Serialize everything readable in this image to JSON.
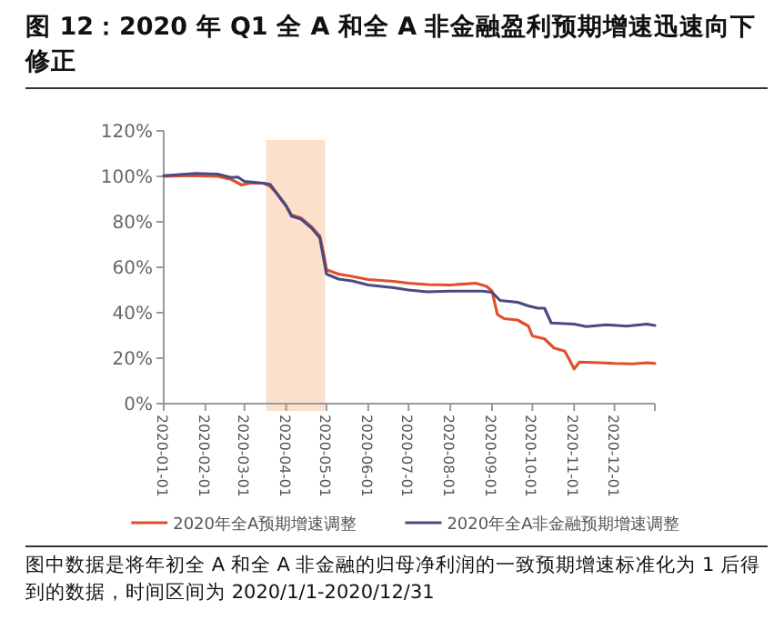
{
  "chart_data": {
    "type": "line",
    "title": "图 12：2020 年 Q1 全 A 和全 A 非金融盈利预期增速迅速向下修正",
    "annotations": [
      "图中数据是将年初全 A 和全 A 非金融的归母净利润的一致预期增速标准化为 1 后得到的数据，时间区间为 2020/1/1-2020/12/31"
    ],
    "series": [
      {
        "name": "2020年全A预期增速调整",
        "color": "#e0502a",
        "x": [
          "2020-01-01",
          "2020-01-20",
          "2020-02-10",
          "2020-02-20",
          "2020-02-28",
          "2020-03-05",
          "2020-03-15",
          "2020-03-20",
          "2020-03-25",
          "2020-04-01",
          "2020-04-05",
          "2020-04-12",
          "2020-04-20",
          "2020-04-26",
          "2020-04-29",
          "2020-05-01",
          "2020-05-10",
          "2020-05-20",
          "2020-06-01",
          "2020-06-20",
          "2020-07-01",
          "2020-07-15",
          "2020-08-01",
          "2020-08-20",
          "2020-08-28",
          "2020-09-01",
          "2020-09-05",
          "2020-09-10",
          "2020-09-20",
          "2020-09-28",
          "2020-10-01",
          "2020-10-10",
          "2020-10-17",
          "2020-10-25",
          "2020-10-28",
          "2020-11-01",
          "2020-11-05",
          "2020-11-20",
          "2020-12-01",
          "2020-12-15",
          "2020-12-25",
          "2020-12-31"
        ],
        "values": [
          100,
          100.3,
          100,
          98.7,
          96.2,
          97,
          97,
          95.7,
          92.5,
          87,
          83,
          81.7,
          77.7,
          73.7,
          65.6,
          58.9,
          57,
          56,
          54.6,
          53.8,
          53,
          52.4,
          52.2,
          53,
          51.6,
          49.5,
          39.2,
          37.4,
          36.8,
          34.1,
          29.8,
          28.5,
          24.5,
          23.1,
          19.9,
          15.3,
          18.3,
          18,
          17.7,
          17.5,
          18,
          17.7
        ]
      },
      {
        "name": "2020年全A非金融预期增速调整",
        "color": "#4a4a82",
        "x": [
          "2020-01-01",
          "2020-01-25",
          "2020-02-10",
          "2020-02-20",
          "2020-02-25",
          "2020-03-01",
          "2020-03-15",
          "2020-03-20",
          "2020-04-01",
          "2020-04-05",
          "2020-04-12",
          "2020-04-20",
          "2020-04-26",
          "2020-05-01",
          "2020-05-10",
          "2020-05-20",
          "2020-06-01",
          "2020-06-20",
          "2020-07-01",
          "2020-07-15",
          "2020-08-01",
          "2020-08-25",
          "2020-09-01",
          "2020-09-07",
          "2020-09-20",
          "2020-09-28",
          "2020-10-05",
          "2020-10-10",
          "2020-10-15",
          "2020-11-01",
          "2020-11-10",
          "2020-11-25",
          "2020-12-10",
          "2020-12-25",
          "2020-12-31"
        ],
        "values": [
          100.3,
          101.3,
          101,
          99.5,
          99.7,
          97.8,
          97,
          96.5,
          87,
          82.5,
          81.2,
          77.2,
          73,
          57,
          54.8,
          54,
          52.2,
          51,
          50,
          49.2,
          49.5,
          49.5,
          49,
          45.4,
          44.6,
          43,
          42,
          42,
          35.5,
          35,
          33.9,
          34.7,
          34.1,
          35,
          34.4
        ]
      }
    ],
    "xlim": [
      "2020-01-01",
      "2020-12-31"
    ],
    "xticks": [
      "2020-01-01",
      "2020-02-01",
      "2020-03-01",
      "2020-04-01",
      "2020-05-01",
      "2020-06-01",
      "2020-07-01",
      "2020-08-01",
      "2020-09-01",
      "2020-10-01",
      "2020-11-01",
      "2020-12-01"
    ],
    "ylim": [
      0,
      120
    ],
    "yticks": [
      {
        "value": 0,
        "label": "0%"
      },
      {
        "value": 20,
        "label": "20%"
      },
      {
        "value": 40,
        "label": "40%"
      },
      {
        "value": 60,
        "label": "60%"
      },
      {
        "value": 80,
        "label": "80%"
      },
      {
        "value": 100,
        "label": "100%"
      },
      {
        "value": 120,
        "label": "120%"
      }
    ],
    "bands": [
      {
        "axis": "x",
        "from": "2020-03-17",
        "to": "2020-04-30",
        "color": "#fbe0cc"
      }
    ],
    "legend": "bottom",
    "grid": false,
    "marker": "none",
    "line_style": "solid"
  }
}
